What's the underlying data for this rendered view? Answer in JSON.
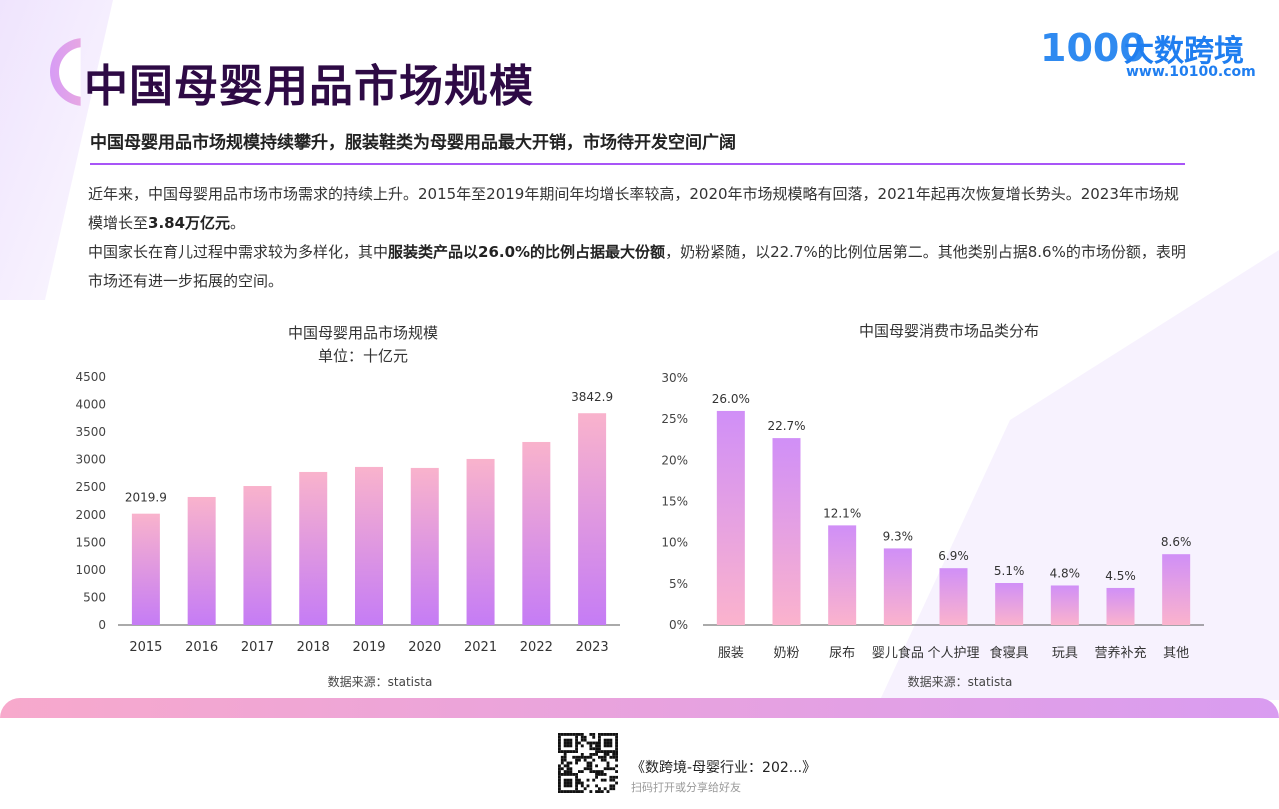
{
  "header": {
    "title": "中国母婴用品市场规模",
    "logo_mark": "1000",
    "logo_name": "大数跨境",
    "logo_url": "www.10100.com"
  },
  "subtitle": "中国母婴用品市场规模持续攀升，服装鞋类为母婴用品最大开销，市场待开发空间广阔",
  "body": {
    "p1a": "近年来，中国母婴用品市场市场需求的持续上升。2015年至2019年期间年均增长率较高，2020年市场规模略有回落，2021年起再次恢复增长势头。2023年市场规模增长至",
    "p1b": "3.84万亿元",
    "p1c": "。",
    "p2a": "中国家长在育儿过程中需求较为多样化，其中",
    "p2b": "服装类产品以26.0%的比例占据最大份额",
    "p2c": "，奶粉紧随，以22.7%的比例位居第二。其他类别占据8.6%的市场份额，表明市场还有进一步拓展的空间。"
  },
  "chart_data": [
    {
      "type": "bar",
      "title": "中国母婴用品市场规模",
      "subtitle": "单位：十亿元",
      "categories": [
        "2015",
        "2016",
        "2017",
        "2018",
        "2019",
        "2020",
        "2021",
        "2022",
        "2023"
      ],
      "values": [
        2019.9,
        2323,
        2522,
        2777,
        2868,
        2850,
        3013,
        3321,
        3842.9
      ],
      "data_labels": {
        "0": "2019.9",
        "8": "3842.9"
      },
      "ylim": [
        0,
        4500
      ],
      "yticks": [
        0,
        500,
        1000,
        1500,
        2000,
        2500,
        3000,
        3500,
        4000,
        4500
      ],
      "source": "数据来源：statista",
      "colors": [
        "#f9b3cc",
        "#c57cf5"
      ]
    },
    {
      "type": "bar",
      "title": "中国母婴消费市场品类分布",
      "categories": [
        "服装",
        "奶粉",
        "尿布",
        "婴儿食品",
        "个人护理",
        "食寝具",
        "玩具",
        "营养补充",
        "其他"
      ],
      "values": [
        26.0,
        22.7,
        12.1,
        9.3,
        6.9,
        5.1,
        4.8,
        4.5,
        8.6
      ],
      "ylim": [
        0,
        30
      ],
      "yticks": [
        "0%",
        "5%",
        "10%",
        "15%",
        "20%",
        "25%",
        "30%"
      ],
      "source": "数据来源：statista",
      "colors": [
        "#d08ff7",
        "#fbb3cd"
      ]
    }
  ],
  "footer": {
    "title": "《数跨境-母婴行业：202...》",
    "sub": "扫码打开或分享给好友"
  }
}
